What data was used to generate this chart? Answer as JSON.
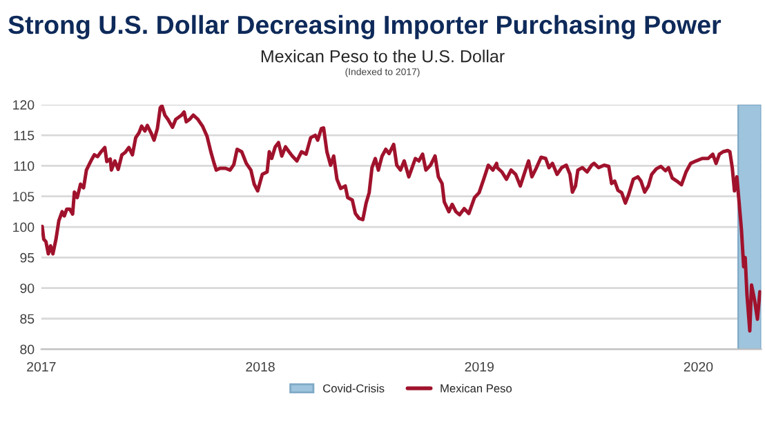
{
  "chart_data": {
    "type": "line",
    "title": "Strong U.S. Dollar Decreasing Importer Purchasing Power",
    "subtitle": "Mexican Peso to the U.S. Dollar",
    "annotations": [
      "(Indexed to 2017)"
    ],
    "xlim": [
      2017,
      2020.287
    ],
    "xticks": [
      2017,
      2018,
      2019,
      2020
    ],
    "ylim": [
      80,
      120
    ],
    "yticks": [
      80,
      85,
      90,
      95,
      100,
      105,
      110,
      115,
      120
    ],
    "grid": "y",
    "legend": "bottom",
    "bands": [
      {
        "axis": "x",
        "from": 2020.182,
        "to": 2020.287,
        "label": "Covid-Crisis",
        "color": "#9fc4dd"
      }
    ],
    "series": [
      {
        "name": "Mexican Peso",
        "color": "#a0122c",
        "x": [
          2017.004,
          2017.011,
          2017.021,
          2017.032,
          2017.042,
          2017.053,
          2017.067,
          2017.08,
          2017.095,
          2017.105,
          2017.116,
          2017.13,
          2017.143,
          2017.151,
          2017.164,
          2017.179,
          2017.193,
          2017.206,
          2017.221,
          2017.231,
          2017.242,
          2017.257,
          2017.273,
          2017.29,
          2017.299,
          2017.315,
          2017.32,
          2017.336,
          2017.351,
          2017.368,
          2017.383,
          2017.4,
          2017.416,
          2017.431,
          2017.446,
          2017.458,
          2017.473,
          2017.484,
          2017.501,
          2017.515,
          2017.53,
          2017.543,
          2017.551,
          2017.564,
          2017.578,
          2017.599,
          2017.614,
          2017.641,
          2017.652,
          2017.662,
          2017.677,
          2017.694,
          2017.715,
          2017.736,
          2017.757,
          2017.774,
          2017.789,
          2017.799,
          2017.816,
          2017.841,
          2017.862,
          2017.879,
          2017.894,
          2017.915,
          2017.936,
          2017.957,
          2017.972,
          2017.988,
          2018.009,
          2018.031,
          2018.041,
          2018.052,
          2018.068,
          2018.083,
          2018.098,
          2018.115,
          2018.131,
          2018.146,
          2018.167,
          2018.188,
          2018.209,
          2018.23,
          2018.251,
          2018.262,
          2018.279,
          2018.289,
          2018.304,
          2018.321,
          2018.335,
          2018.35,
          2018.367,
          2018.388,
          2018.399,
          2018.42,
          2018.434,
          2018.451,
          2018.468,
          2018.483,
          2018.497,
          2018.51,
          2018.525,
          2018.539,
          2018.556,
          2018.573,
          2018.588,
          2018.609,
          2018.623,
          2018.64,
          2018.657,
          2018.678,
          2018.693,
          2018.708,
          2018.724,
          2018.741,
          2018.756,
          2018.777,
          2018.798,
          2018.813,
          2018.83,
          2018.84,
          2018.861,
          2018.876,
          2018.893,
          2018.91,
          2018.931,
          2018.952,
          2018.978,
          2018.999,
          2019.02,
          2019.041,
          2019.062,
          2019.079,
          2019.082,
          2019.103,
          2019.124,
          2019.145,
          2019.166,
          2019.187,
          2019.208,
          2019.225,
          2019.24,
          2019.261,
          2019.282,
          2019.303,
          2019.318,
          2019.334,
          2019.355,
          2019.376,
          2019.397,
          2019.414,
          2019.425,
          2019.439,
          2019.45,
          2019.471,
          2019.492,
          2019.513,
          2019.524,
          2019.545,
          2019.57,
          2019.591,
          2019.604,
          2019.618,
          2019.633,
          2019.65,
          2019.667,
          2019.681,
          2019.703,
          2019.724,
          2019.738,
          2019.755,
          2019.772,
          2019.787,
          2019.808,
          2019.829,
          2019.85,
          2019.864,
          2019.881,
          2019.902,
          2019.923,
          2019.944,
          2019.965,
          2019.99,
          2020.018,
          2020.045,
          2020.066,
          2020.081,
          2020.096,
          2020.113,
          2020.134,
          2020.144,
          2020.155,
          2020.165,
          2020.176,
          2020.186,
          2020.197,
          2020.207,
          2020.214,
          2020.222,
          2020.235,
          2020.243,
          2020.256,
          2020.27,
          2020.281
        ],
        "values": [
          100.1,
          98.0,
          97.6,
          95.6,
          96.9,
          95.6,
          98.0,
          101.0,
          102.5,
          101.8,
          102.9,
          102.9,
          102.1,
          105.7,
          104.8,
          107.0,
          106.4,
          109.3,
          110.4,
          111.1,
          111.8,
          111.5,
          112.3,
          113.0,
          110.7,
          111.1,
          109.3,
          110.8,
          109.4,
          111.8,
          112.2,
          113.0,
          111.8,
          114.6,
          115.4,
          116.5,
          115.7,
          116.6,
          115.4,
          114.2,
          116.1,
          119.5,
          119.8,
          118.3,
          117.6,
          116.3,
          117.6,
          118.3,
          118.8,
          117.2,
          117.6,
          118.3,
          117.6,
          116.5,
          114.8,
          112.3,
          110.4,
          109.3,
          109.6,
          109.6,
          109.3,
          110.2,
          112.7,
          112.3,
          110.4,
          109.3,
          107.0,
          105.9,
          108.6,
          109.0,
          112.3,
          111.2,
          113.1,
          113.8,
          111.6,
          113.1,
          112.3,
          111.6,
          110.8,
          112.3,
          111.9,
          114.6,
          115.0,
          114.2,
          116.1,
          116.2,
          112.3,
          110.1,
          111.6,
          107.8,
          106.3,
          106.7,
          104.8,
          104.4,
          102.2,
          101.4,
          101.2,
          103.9,
          105.6,
          109.7,
          111.2,
          109.3,
          111.6,
          112.7,
          112.0,
          113.5,
          110.1,
          109.3,
          110.8,
          108.2,
          109.7,
          111.2,
          110.8,
          111.9,
          109.3,
          110.1,
          111.6,
          108.2,
          107.1,
          104.1,
          102.5,
          103.7,
          102.5,
          102.0,
          103.0,
          102.2,
          104.8,
          105.6,
          107.8,
          110.1,
          109.3,
          110.4,
          109.7,
          109.0,
          107.8,
          109.3,
          108.6,
          106.7,
          109.0,
          110.8,
          108.2,
          109.7,
          111.4,
          111.2,
          109.7,
          110.4,
          108.6,
          109.7,
          110.1,
          108.6,
          105.7,
          106.7,
          109.3,
          109.7,
          109.0,
          110.1,
          110.4,
          109.7,
          110.1,
          109.9,
          107.1,
          107.5,
          106.0,
          105.6,
          103.9,
          105.2,
          107.8,
          108.2,
          107.5,
          105.7,
          106.7,
          108.6,
          109.5,
          109.9,
          109.2,
          109.7,
          108.0,
          107.5,
          106.9,
          109.0,
          110.4,
          110.8,
          111.2,
          111.2,
          111.9,
          110.4,
          111.9,
          112.3,
          112.5,
          112.3,
          109.7,
          105.9,
          108.2,
          104.1,
          99.5,
          93.5,
          95.0,
          89.0,
          83.0,
          90.5,
          88.2,
          84.9,
          89.4
        ]
      }
    ]
  }
}
